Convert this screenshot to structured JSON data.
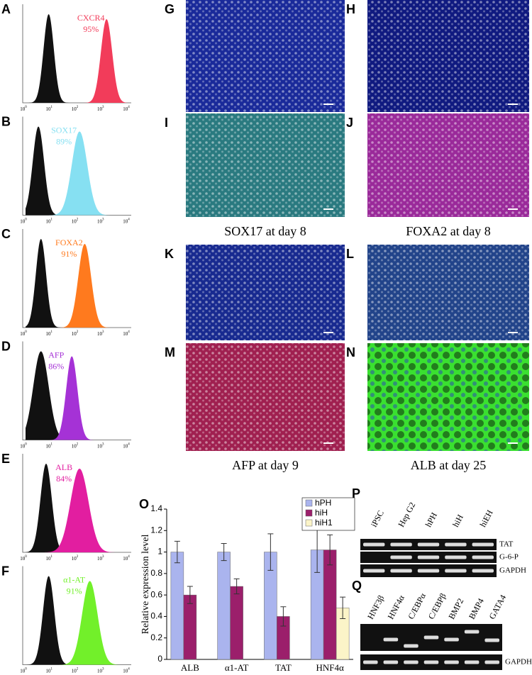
{
  "flow": {
    "ticks": [
      {
        "base": "10",
        "exp": "0"
      },
      {
        "base": "10",
        "exp": "1"
      },
      {
        "base": "10",
        "exp": "2"
      },
      {
        "base": "10",
        "exp": "3"
      },
      {
        "base": "10",
        "exp": "4"
      }
    ],
    "panels": [
      {
        "letter": "A",
        "marker": "CXCR4",
        "percent": "95%",
        "color": "#f23c5a"
      },
      {
        "letter": "B",
        "marker": "SOX17",
        "percent": "89%",
        "color": "#86e0f2"
      },
      {
        "letter": "C",
        "marker": "FOXA2",
        "percent": "91%",
        "color": "#ff7a1e"
      },
      {
        "letter": "D",
        "marker": "AFP",
        "percent": "86%",
        "color": "#a532d6"
      },
      {
        "letter": "E",
        "marker": "ALB",
        "percent": "84%",
        "color": "#e21ea0"
      },
      {
        "letter": "F",
        "marker": "α1-AT",
        "percent": "91%",
        "color": "#72f02a"
      }
    ]
  },
  "images": [
    {
      "letter": "G",
      "caption": null
    },
    {
      "letter": "H",
      "caption": null
    },
    {
      "letter": "I",
      "caption": "SOX17 at day 8"
    },
    {
      "letter": "J",
      "caption": "FOXA2 at day 8"
    },
    {
      "letter": "K",
      "caption": null
    },
    {
      "letter": "L",
      "caption": null
    },
    {
      "letter": "M",
      "caption": "AFP at day 9"
    },
    {
      "letter": "N",
      "caption": "ALB at day 25"
    }
  ],
  "chart_data": {
    "type": "bar",
    "letter": "O",
    "y_label": "Relative expression level",
    "categories": [
      "ALB",
      "α1-AT",
      "TAT",
      "HNF4α"
    ],
    "series": [
      {
        "name": "hPH",
        "color": "#aab4ee",
        "values": [
          1,
          1,
          1,
          1.02
        ],
        "errors": [
          0.1,
          0.08,
          0.17,
          0.21
        ]
      },
      {
        "name": "hiH",
        "color": "#9b1f6b",
        "values": [
          0.6,
          0.68,
          0.4,
          1.02
        ],
        "errors": [
          0.08,
          0.07,
          0.09,
          0.14
        ]
      },
      {
        "name": "hiH1",
        "color": "#fbf4c8",
        "values": [
          null,
          null,
          null,
          0.48
        ],
        "errors": [
          null,
          null,
          null,
          0.1
        ]
      }
    ],
    "ylim": [
      0,
      1.4
    ],
    "yticks": [
      0,
      0.2,
      0.4,
      0.6,
      0.8,
      1,
      1.2,
      1.4
    ]
  },
  "gel_p": {
    "letter": "P",
    "lanes": [
      "iPSC",
      "Hep G2",
      "hPH",
      "hiH",
      "hiEH"
    ],
    "rows": [
      "TAT",
      "G-6-P",
      "GAPDH"
    ]
  },
  "gel_q": {
    "letter": "Q",
    "lanes": [
      "HNF3β",
      "HNF4α",
      "C/EBPα",
      "C/EBPβ",
      "BMP2",
      "BMP4",
      "GATA4"
    ],
    "rows": [
      "GAPDH"
    ]
  }
}
